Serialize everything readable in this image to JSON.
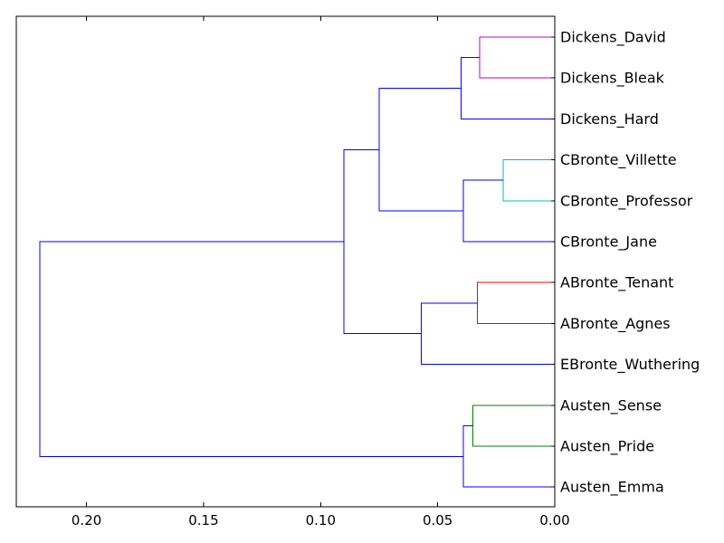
{
  "chart_data": {
    "type": "dendrogram",
    "orientation": "left",
    "xlim": [
      0.23,
      0.0
    ],
    "xticks": [
      0.2,
      0.15,
      0.1,
      0.05,
      0.0
    ],
    "xtick_labels": [
      "0.20",
      "0.15",
      "0.10",
      "0.05",
      "0.00"
    ],
    "leaves": [
      "Dickens_David",
      "Dickens_Bleak",
      "Dickens_Hard",
      "CBronte_Villette",
      "CBronte_Professor",
      "CBronte_Jane",
      "ABronte_Tenant",
      "ABronte_Agnes",
      "EBronte_Wuthering",
      "Austen_Sense",
      "Austen_Pride",
      "Austen_Emma"
    ],
    "colors": {
      "magenta": "#bf00bf",
      "cyan": "#00bfbf",
      "red": "#ff0000",
      "green": "#008000",
      "blue": "#0000ff"
    },
    "merges": [
      {
        "a": "Dickens_David",
        "b": "Dickens_Bleak",
        "height": 0.032,
        "color": "magenta"
      },
      {
        "a": "m0",
        "b": "Dickens_Hard",
        "height": 0.04,
        "color": "blue"
      },
      {
        "a": "CBronte_Villette",
        "b": "CBronte_Professor",
        "height": 0.022,
        "color": "cyan"
      },
      {
        "a": "m2",
        "b": "CBronte_Jane",
        "height": 0.039,
        "color": "blue"
      },
      {
        "a": "m1",
        "b": "m3",
        "height": 0.075,
        "color": "blue"
      },
      {
        "a": "ABronte_Tenant",
        "b": "ABronte_Agnes",
        "height": 0.033,
        "color": "red"
      },
      {
        "a": "m5",
        "b": "EBronte_Wuthering",
        "height": 0.057,
        "color": "blue"
      },
      {
        "a": "m4",
        "b": "m6",
        "height": 0.09,
        "color": "blue"
      },
      {
        "a": "Austen_Sense",
        "b": "Austen_Pride",
        "height": 0.035,
        "color": "green"
      },
      {
        "a": "m8",
        "b": "Austen_Emma",
        "height": 0.039,
        "color": "blue"
      },
      {
        "a": "m7",
        "b": "m9",
        "height": 0.22,
        "color": "blue"
      }
    ]
  }
}
